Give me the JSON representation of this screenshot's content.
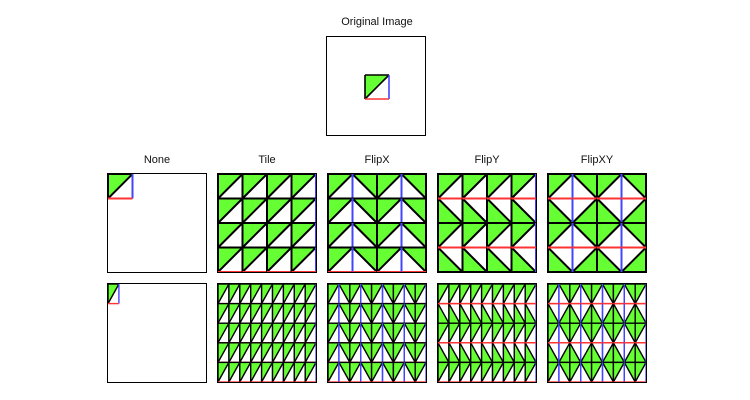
{
  "title": "Original Image",
  "modes": [
    {
      "key": "none",
      "label": "None"
    },
    {
      "key": "tile",
      "label": "Tile"
    },
    {
      "key": "flipx",
      "label": "FlipX"
    },
    {
      "key": "flipy",
      "label": "FlipY"
    },
    {
      "key": "flipxy",
      "label": "FlipXY"
    }
  ],
  "colors": {
    "fill": "#66ff33",
    "top_edge": "#000000",
    "left_edge": "#000000",
    "right_edge": "#4444ff",
    "bottom_edge": "#ff3333",
    "diagonal": "#000000",
    "border": "#000000"
  }
}
